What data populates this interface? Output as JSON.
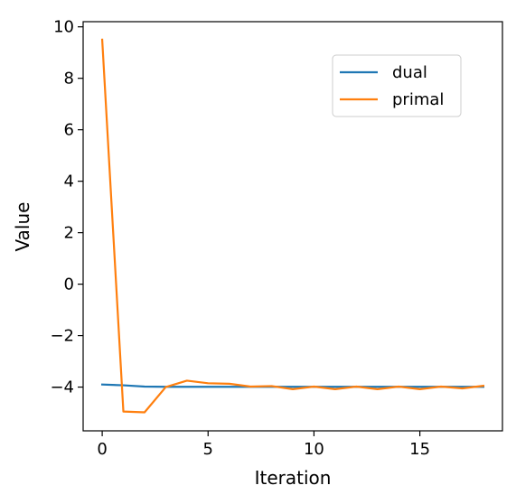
{
  "chart_data": {
    "type": "line",
    "xlabel": "Iteration",
    "ylabel": "Value",
    "xlim": [
      -0.9,
      18.9
    ],
    "ylim": [
      -5.7,
      10.2
    ],
    "xticks": [
      0,
      5,
      10,
      15
    ],
    "yticks": [
      -4,
      -2,
      0,
      2,
      4,
      6,
      8,
      10
    ],
    "grid": false,
    "legend_position": "upper right",
    "x": [
      0,
      1,
      2,
      3,
      4,
      5,
      6,
      7,
      8,
      9,
      10,
      11,
      12,
      13,
      14,
      15,
      16,
      17,
      18
    ],
    "series": [
      {
        "name": "dual",
        "color": "#1f77b4",
        "values": [
          -3.9,
          -3.93,
          -3.98,
          -3.99,
          -3.99,
          -3.99,
          -3.99,
          -3.99,
          -3.99,
          -3.99,
          -3.99,
          -3.99,
          -3.99,
          -3.99,
          -3.99,
          -3.99,
          -3.99,
          -3.99,
          -3.99
        ]
      },
      {
        "name": "primal",
        "color": "#ff7f0e",
        "values": [
          9.5,
          -4.95,
          -4.98,
          -4.0,
          -3.75,
          -3.85,
          -3.87,
          -3.98,
          -3.96,
          -4.08,
          -3.98,
          -4.08,
          -3.98,
          -4.08,
          -3.98,
          -4.08,
          -3.98,
          -4.05,
          -3.95
        ]
      }
    ]
  }
}
